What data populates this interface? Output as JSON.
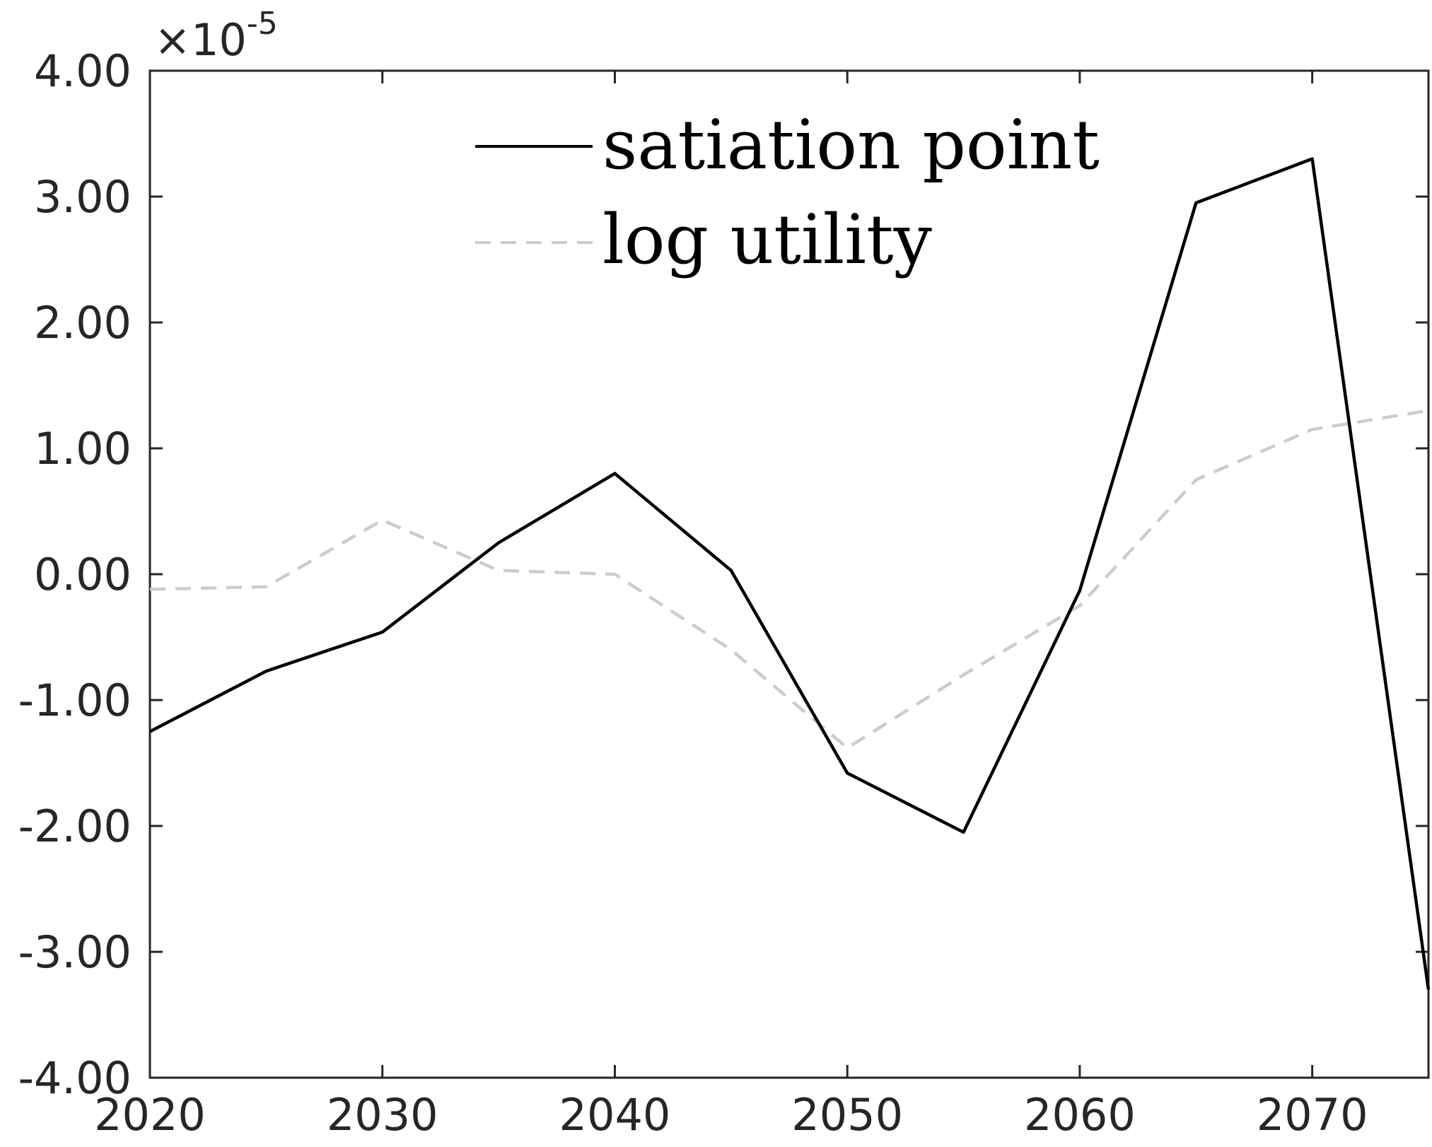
{
  "chart_data": {
    "type": "line",
    "x": [
      2020,
      2025,
      2030,
      2035,
      2040,
      2045,
      2050,
      2055,
      2060,
      2065,
      2070,
      2075
    ],
    "series": [
      {
        "name": "satiation point",
        "color": "#000000",
        "dash": "solid",
        "values": [
          -1.25,
          -0.77,
          -0.46,
          0.25,
          0.8,
          0.03,
          -1.58,
          -2.05,
          -0.13,
          2.95,
          3.3,
          -3.3
        ]
      },
      {
        "name": "log utility",
        "color": "#cccccc",
        "dash": "dashed",
        "values": [
          -0.12,
          -0.1,
          0.43,
          0.03,
          0.0,
          -0.6,
          -1.38,
          -0.8,
          -0.25,
          0.75,
          1.15,
          1.3
        ]
      }
    ],
    "xlim": [
      2020,
      2075
    ],
    "ylim": [
      -4,
      4
    ],
    "x_ticks": [
      "2020",
      "2030",
      "2040",
      "2050",
      "2060",
      "2070"
    ],
    "x_tick_values": [
      2020,
      2030,
      2040,
      2050,
      2060,
      2070
    ],
    "y_ticks": [
      "-4.00",
      "-3.00",
      "-2.00",
      "-1.00",
      "0.00",
      "1.00",
      "2.00",
      "3.00",
      "4.00"
    ],
    "y_tick_values": [
      -4,
      -3,
      -2,
      -1,
      0,
      1,
      2,
      3,
      4
    ],
    "y_multiplier": {
      "base": "×10",
      "exponent": "-5"
    },
    "grid": false,
    "legend": "top-center"
  }
}
